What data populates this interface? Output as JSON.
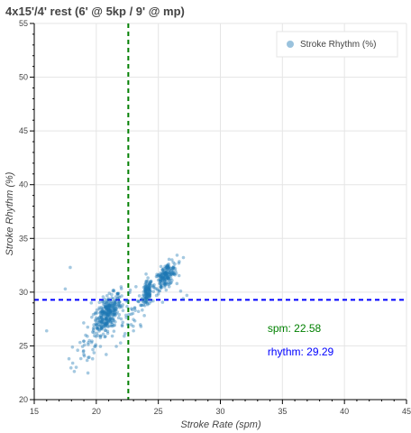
{
  "chart_data": {
    "type": "scatter",
    "title": "4x15'/4' rest (6' @ 5kp / 9' @ mp)",
    "xlabel": "Stroke Rate (spm)",
    "ylabel": "Stroke Rhythm (%)",
    "xlim": [
      15,
      45
    ],
    "ylim": [
      20,
      55
    ],
    "xticks": [
      15,
      20,
      25,
      30,
      35,
      40,
      45
    ],
    "yticks": [
      20,
      25,
      30,
      35,
      40,
      45,
      50,
      55
    ],
    "grid": true,
    "legend_position": "top-right",
    "series": [
      {
        "name": "Stroke Rhythm (%)",
        "color": "#1f77b4",
        "clusters": [
          {
            "cx": 20.9,
            "cy": 28.0,
            "sx": 0.55,
            "sy": 0.75,
            "n": 320
          },
          {
            "cx": 24.1,
            "cy": 29.8,
            "sx": 0.2,
            "sy": 0.6,
            "n": 120
          },
          {
            "cx": 25.6,
            "cy": 31.5,
            "sx": 0.45,
            "sy": 0.55,
            "n": 190
          },
          {
            "cx": 19.5,
            "cy": 25.2,
            "sx": 0.9,
            "sy": 0.9,
            "n": 35
          },
          {
            "cx": 22.8,
            "cy": 28.0,
            "sx": 0.7,
            "sy": 1.2,
            "n": 40
          }
        ],
        "points": [
          {
            "x": 16.0,
            "y": 26.4
          },
          {
            "x": 17.9,
            "y": 32.3
          },
          {
            "x": 17.5,
            "y": 30.3
          },
          {
            "x": 17.8,
            "y": 23.8
          },
          {
            "x": 18.1,
            "y": 23.4
          },
          {
            "x": 18.5,
            "y": 24.6
          },
          {
            "x": 19.0,
            "y": 24.2
          },
          {
            "x": 19.7,
            "y": 23.8
          },
          {
            "x": 19.6,
            "y": 29.0
          },
          {
            "x": 20.8,
            "y": 24.2
          },
          {
            "x": 23.0,
            "y": 26.4
          },
          {
            "x": 23.6,
            "y": 26.8
          },
          {
            "x": 22.0,
            "y": 30.5
          },
          {
            "x": 26.8,
            "y": 30.1
          },
          {
            "x": 27.3,
            "y": 29.7
          },
          {
            "x": 27.0,
            "y": 29.4
          },
          {
            "x": 26.5,
            "y": 30.8
          },
          {
            "x": 23.4,
            "y": 28.2
          }
        ]
      }
    ],
    "reference_lines": [
      {
        "orientation": "vertical",
        "value": 22.58,
        "color": "#008000"
      },
      {
        "orientation": "horizontal",
        "value": 29.29,
        "color": "#0000ff"
      }
    ],
    "annotations": [
      {
        "label": "spm:",
        "value": "22.58",
        "color": "#008000",
        "x": 33.8,
        "y": 26.3
      },
      {
        "label": "rhythm:",
        "value": "29.29",
        "color": "#0000ff",
        "x": 33.8,
        "y": 24.1
      }
    ]
  }
}
